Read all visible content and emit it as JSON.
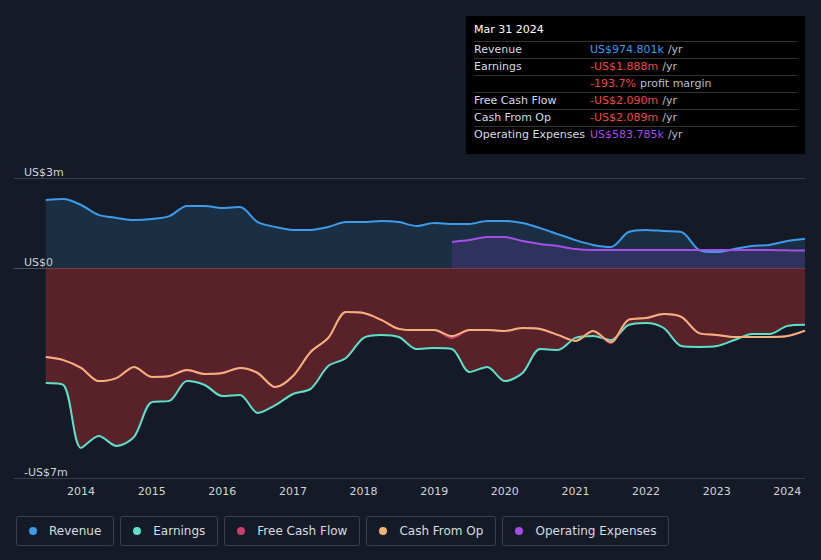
{
  "chart_data": {
    "type": "line",
    "x": [
      2013.5,
      2013.75,
      2014,
      2014.25,
      2014.5,
      2014.75,
      2015,
      2015.25,
      2015.5,
      2015.75,
      2016,
      2016.25,
      2016.5,
      2016.75,
      2017,
      2017.25,
      2017.5,
      2017.75,
      2018,
      2018.25,
      2018.5,
      2018.75,
      2019,
      2019.25,
      2019.5,
      2019.75,
      2020,
      2020.25,
      2020.5,
      2020.75,
      2021,
      2021.25,
      2021.5,
      2021.75,
      2022,
      2022.25,
      2022.5,
      2022.75,
      2023,
      2023.25,
      2023.5,
      2023.75,
      2024,
      2024.25
    ],
    "xlim": [
      2013.05,
      2024.25
    ],
    "xticks": [
      2014,
      2015,
      2016,
      2017,
      2018,
      2019,
      2020,
      2021,
      2022,
      2023,
      2024
    ],
    "ylim": [
      -7,
      3
    ],
    "yticks": [
      {
        "value": -7,
        "label": "-US$7m"
      },
      {
        "value": 0,
        "label": "US$0"
      },
      {
        "value": 3,
        "label": "US$3m"
      }
    ],
    "grid": true,
    "legend": "bottom",
    "series": [
      {
        "name": "Revenue",
        "color": "#3d9be9",
        "type": "area",
        "values": [
          2.27,
          2.3,
          2.1,
          1.77,
          1.67,
          1.6,
          1.63,
          1.73,
          2.07,
          2.07,
          2.0,
          2.03,
          1.53,
          1.37,
          1.27,
          1.27,
          1.37,
          1.53,
          1.53,
          1.57,
          1.53,
          1.4,
          1.5,
          1.47,
          1.47,
          1.57,
          1.57,
          1.5,
          1.33,
          1.13,
          0.93,
          0.77,
          0.7,
          1.2,
          1.27,
          1.23,
          1.2,
          0.6,
          0.53,
          0.63,
          0.73,
          0.77,
          0.9,
          0.975
        ]
      },
      {
        "name": "Earnings",
        "color": "#5ce1c8",
        "type": "area",
        "values": [
          -3.83,
          -3.9,
          -6.0,
          -5.6,
          -5.93,
          -5.63,
          -4.47,
          -4.43,
          -3.77,
          -3.9,
          -4.27,
          -4.23,
          -4.83,
          -4.57,
          -4.2,
          -4.03,
          -3.27,
          -3.0,
          -2.33,
          -2.23,
          -2.3,
          -2.7,
          -2.67,
          -2.7,
          -3.47,
          -3.3,
          -3.77,
          -3.5,
          -2.7,
          -2.73,
          -2.33,
          -2.27,
          -2.4,
          -1.9,
          -1.83,
          -2.0,
          -2.6,
          -2.63,
          -2.6,
          -2.4,
          -2.2,
          -2.2,
          -1.93,
          -1.888
        ]
      },
      {
        "name": "Free Cash Flow",
        "color": "#c93e6e",
        "type": "line",
        "values": [
          -2.97,
          -3.07,
          -3.33,
          -3.77,
          -3.67,
          -3.3,
          -3.63,
          -3.6,
          -3.4,
          -3.53,
          -3.5,
          -3.33,
          -3.5,
          -3.97,
          -3.6,
          -2.8,
          -2.33,
          -1.47,
          -1.5,
          -1.73,
          -2.03,
          -2.07,
          -2.07,
          -2.33,
          -2.07,
          -2.07,
          -2.1,
          -2.0,
          -2.03,
          -2.23,
          -2.43,
          -2.1,
          -2.5,
          -1.73,
          -1.67,
          -1.53,
          -1.63,
          -2.17,
          -2.23,
          -2.3,
          -2.3,
          -2.3,
          -2.27,
          -2.09
        ]
      },
      {
        "name": "Cash From Op",
        "color": "#f0b27a",
        "type": "line",
        "values": [
          -2.97,
          -3.07,
          -3.33,
          -3.77,
          -3.67,
          -3.3,
          -3.63,
          -3.6,
          -3.4,
          -3.53,
          -3.5,
          -3.33,
          -3.5,
          -3.97,
          -3.6,
          -2.8,
          -2.33,
          -1.47,
          -1.5,
          -1.73,
          -2.03,
          -2.07,
          -2.07,
          -2.27,
          -2.07,
          -2.07,
          -2.1,
          -2.0,
          -2.03,
          -2.23,
          -2.43,
          -2.1,
          -2.47,
          -1.73,
          -1.67,
          -1.53,
          -1.63,
          -2.17,
          -2.23,
          -2.3,
          -2.3,
          -2.3,
          -2.27,
          -2.089
        ]
      },
      {
        "name": "Operating Expenses",
        "color": "#a64ee8",
        "type": "area",
        "values": [
          null,
          null,
          null,
          null,
          null,
          null,
          null,
          null,
          null,
          null,
          null,
          null,
          null,
          null,
          null,
          null,
          null,
          null,
          null,
          null,
          null,
          null,
          null,
          0.87,
          0.93,
          1.03,
          1.03,
          0.9,
          0.8,
          0.73,
          0.63,
          0.6,
          0.6,
          0.6,
          0.6,
          0.6,
          0.6,
          0.6,
          0.6,
          0.6,
          0.6,
          0.6,
          0.59,
          0.584
        ]
      }
    ]
  },
  "info_box": {
    "title": "Mar 31 2024",
    "rows": [
      {
        "label": "Revenue",
        "value": "US$974.801k",
        "suffix": "/yr",
        "color": "#3d9be9"
      },
      {
        "label": "Earnings",
        "value": "-US$1.888m",
        "suffix": "/yr",
        "color": "#f04848"
      },
      {
        "value": "-193.7%",
        "suffix": "profit margin",
        "color": "#f04848"
      },
      {
        "label": "Free Cash Flow",
        "value": "-US$2.090m",
        "suffix": "/yr",
        "color": "#f04848"
      },
      {
        "label": "Cash From Op",
        "value": "-US$2.089m",
        "suffix": "/yr",
        "color": "#f04848"
      },
      {
        "label": "Operating Expenses",
        "value": "US$583.785k",
        "suffix": "/yr",
        "color": "#a64ee8"
      }
    ]
  }
}
